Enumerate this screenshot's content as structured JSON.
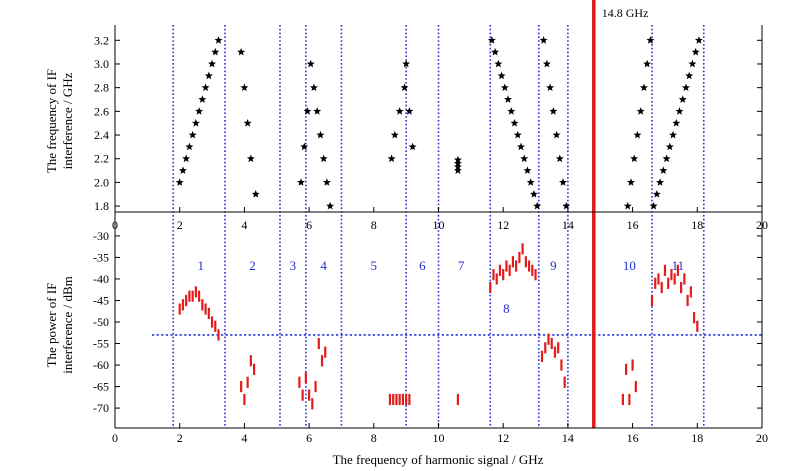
{
  "chart_data": {
    "type": "scatter",
    "xlabel": "The frequency of harmonic signal / GHz",
    "xlim": [
      0,
      20
    ],
    "x_ticks": [
      "0",
      "2",
      "4",
      "6",
      "8",
      "10",
      "12",
      "14",
      "16",
      "18",
      "20"
    ],
    "marker_label": "14.8 GHz",
    "marker_x": 14.8,
    "region_boundaries": [
      1.8,
      3.4,
      5.1,
      5.9,
      7.0,
      9.0,
      10.0,
      11.6,
      13.1,
      14.0,
      16.6,
      18.2
    ],
    "top_panel": {
      "ylabel_line1": "The frequency of IF",
      "ylabel_line2": "interference / GHz",
      "ylim": [
        1.75,
        3.27
      ],
      "y_ticks": [
        "1.8",
        "2.0",
        "2.2",
        "2.4",
        "2.6",
        "2.8",
        "3.0",
        "3.2"
      ],
      "points": [
        [
          2.0,
          2.0
        ],
        [
          2.1,
          2.1
        ],
        [
          2.2,
          2.2
        ],
        [
          2.3,
          2.3
        ],
        [
          2.4,
          2.4
        ],
        [
          2.5,
          2.5
        ],
        [
          2.6,
          2.6
        ],
        [
          2.7,
          2.7
        ],
        [
          2.8,
          2.8
        ],
        [
          2.9,
          2.9
        ],
        [
          3.0,
          3.0
        ],
        [
          3.1,
          3.1
        ],
        [
          3.2,
          3.2
        ],
        [
          3.9,
          3.1
        ],
        [
          4.0,
          2.8
        ],
        [
          4.1,
          2.5
        ],
        [
          4.2,
          2.2
        ],
        [
          4.35,
          1.9
        ],
        [
          5.75,
          2.0
        ],
        [
          5.85,
          2.3
        ],
        [
          5.95,
          2.6
        ],
        [
          6.05,
          3.0
        ],
        [
          6.15,
          2.8
        ],
        [
          6.25,
          2.6
        ],
        [
          6.35,
          2.4
        ],
        [
          6.45,
          2.2
        ],
        [
          6.55,
          2.0
        ],
        [
          6.65,
          1.8
        ],
        [
          8.55,
          2.2
        ],
        [
          8.65,
          2.4
        ],
        [
          8.8,
          2.6
        ],
        [
          8.95,
          2.8
        ],
        [
          9.0,
          3.0
        ],
        [
          9.1,
          2.6
        ],
        [
          9.2,
          2.3
        ],
        [
          10.6,
          2.1
        ],
        [
          10.6,
          2.13
        ],
        [
          10.6,
          2.16
        ],
        [
          10.6,
          2.19
        ],
        [
          11.65,
          3.2
        ],
        [
          11.75,
          3.1
        ],
        [
          11.85,
          3.0
        ],
        [
          11.95,
          2.9
        ],
        [
          12.05,
          2.8
        ],
        [
          12.15,
          2.7
        ],
        [
          12.25,
          2.6
        ],
        [
          12.35,
          2.5
        ],
        [
          12.45,
          2.4
        ],
        [
          12.55,
          2.3
        ],
        [
          12.65,
          2.2
        ],
        [
          12.75,
          2.1
        ],
        [
          12.85,
          2.0
        ],
        [
          12.95,
          1.9
        ],
        [
          13.05,
          1.8
        ],
        [
          13.25,
          3.2
        ],
        [
          13.35,
          3.0
        ],
        [
          13.45,
          2.8
        ],
        [
          13.55,
          2.6
        ],
        [
          13.65,
          2.4
        ],
        [
          13.75,
          2.2
        ],
        [
          13.85,
          2.0
        ],
        [
          13.95,
          1.8
        ],
        [
          15.85,
          1.8
        ],
        [
          15.95,
          2.0
        ],
        [
          16.05,
          2.2
        ],
        [
          16.15,
          2.4
        ],
        [
          16.25,
          2.6
        ],
        [
          16.35,
          2.8
        ],
        [
          16.45,
          3.0
        ],
        [
          16.55,
          3.2
        ],
        [
          16.65,
          1.8
        ],
        [
          16.75,
          1.9
        ],
        [
          16.85,
          2.0
        ],
        [
          16.95,
          2.1
        ],
        [
          17.05,
          2.2
        ],
        [
          17.15,
          2.3
        ],
        [
          17.25,
          2.4
        ],
        [
          17.35,
          2.5
        ],
        [
          17.45,
          2.6
        ],
        [
          17.55,
          2.7
        ],
        [
          17.65,
          2.8
        ],
        [
          17.75,
          2.9
        ],
        [
          17.85,
          3.0
        ],
        [
          17.95,
          3.1
        ],
        [
          18.05,
          3.2
        ]
      ]
    },
    "bottom_panel": {
      "ylabel_line1": "The power of IF",
      "ylabel_line2": "interference / dBm",
      "ylim": [
        -73,
        -27
      ],
      "y_ticks": [
        "-30",
        "-35",
        "-40",
        "-45",
        "-50",
        "-55",
        "-60",
        "-65",
        "-70"
      ],
      "threshold_dbm": -53,
      "bar_half_height_db": 1.3,
      "points": [
        [
          2.0,
          -47
        ],
        [
          2.1,
          -46
        ],
        [
          2.2,
          -45
        ],
        [
          2.3,
          -44
        ],
        [
          2.4,
          -44
        ],
        [
          2.5,
          -43
        ],
        [
          2.6,
          -44
        ],
        [
          2.7,
          -46
        ],
        [
          2.8,
          -47
        ],
        [
          2.9,
          -48
        ],
        [
          3.0,
          -50
        ],
        [
          3.1,
          -51
        ],
        [
          3.2,
          -53
        ],
        [
          3.9,
          -65
        ],
        [
          4.0,
          -68
        ],
        [
          4.1,
          -64
        ],
        [
          4.2,
          -59
        ],
        [
          4.3,
          -61
        ],
        [
          5.7,
          -64
        ],
        [
          5.8,
          -67
        ],
        [
          5.9,
          -63
        ],
        [
          6.0,
          -67
        ],
        [
          6.1,
          -69
        ],
        [
          6.2,
          -65
        ],
        [
          6.3,
          -55
        ],
        [
          6.4,
          -59
        ],
        [
          6.5,
          -57
        ],
        [
          8.5,
          -68
        ],
        [
          8.6,
          -68
        ],
        [
          8.7,
          -68
        ],
        [
          8.8,
          -68
        ],
        [
          8.9,
          -68
        ],
        [
          9.0,
          -68
        ],
        [
          9.1,
          -68
        ],
        [
          10.6,
          -68
        ],
        [
          11.6,
          -42
        ],
        [
          11.7,
          -39
        ],
        [
          11.8,
          -40
        ],
        [
          11.9,
          -38
        ],
        [
          12.0,
          -39
        ],
        [
          12.1,
          -37
        ],
        [
          12.2,
          -38
        ],
        [
          12.3,
          -36
        ],
        [
          12.4,
          -37
        ],
        [
          12.5,
          -35
        ],
        [
          12.6,
          -33
        ],
        [
          12.7,
          -36
        ],
        [
          12.8,
          -37
        ],
        [
          12.9,
          -38
        ],
        [
          13.0,
          -39
        ],
        [
          13.2,
          -58
        ],
        [
          13.3,
          -56
        ],
        [
          13.4,
          -54
        ],
        [
          13.5,
          -55
        ],
        [
          13.6,
          -57
        ],
        [
          13.7,
          -56
        ],
        [
          13.8,
          -60
        ],
        [
          13.9,
          -64
        ],
        [
          15.7,
          -68
        ],
        [
          15.8,
          -61
        ],
        [
          15.9,
          -68
        ],
        [
          16.0,
          -60
        ],
        [
          16.1,
          -65
        ],
        [
          16.6,
          -45
        ],
        [
          16.7,
          -41
        ],
        [
          16.8,
          -40
        ],
        [
          16.9,
          -42
        ],
        [
          17.0,
          -38
        ],
        [
          17.1,
          -41
        ],
        [
          17.2,
          -39
        ],
        [
          17.3,
          -40
        ],
        [
          17.4,
          -38
        ],
        [
          17.5,
          -42
        ],
        [
          17.6,
          -40
        ],
        [
          17.7,
          -45
        ],
        [
          17.8,
          -43
        ],
        [
          17.9,
          -49
        ],
        [
          18.0,
          -51
        ]
      ]
    },
    "region_labels": [
      {
        "text": "1",
        "x": 2.65,
        "y": -37
      },
      {
        "text": "2",
        "x": 4.25,
        "y": -37
      },
      {
        "text": "3",
        "x": 5.5,
        "y": -37
      },
      {
        "text": "4",
        "x": 6.45,
        "y": -37
      },
      {
        "text": "5",
        "x": 8.0,
        "y": -37
      },
      {
        "text": "6",
        "x": 9.5,
        "y": -37
      },
      {
        "text": "7",
        "x": 10.7,
        "y": -37
      },
      {
        "text": "8",
        "x": 12.1,
        "y": -47
      },
      {
        "text": "9",
        "x": 13.55,
        "y": -37
      },
      {
        "text": "10",
        "x": 15.9,
        "y": -37
      },
      {
        "text": "11",
        "x": 17.4,
        "y": -37
      }
    ]
  }
}
